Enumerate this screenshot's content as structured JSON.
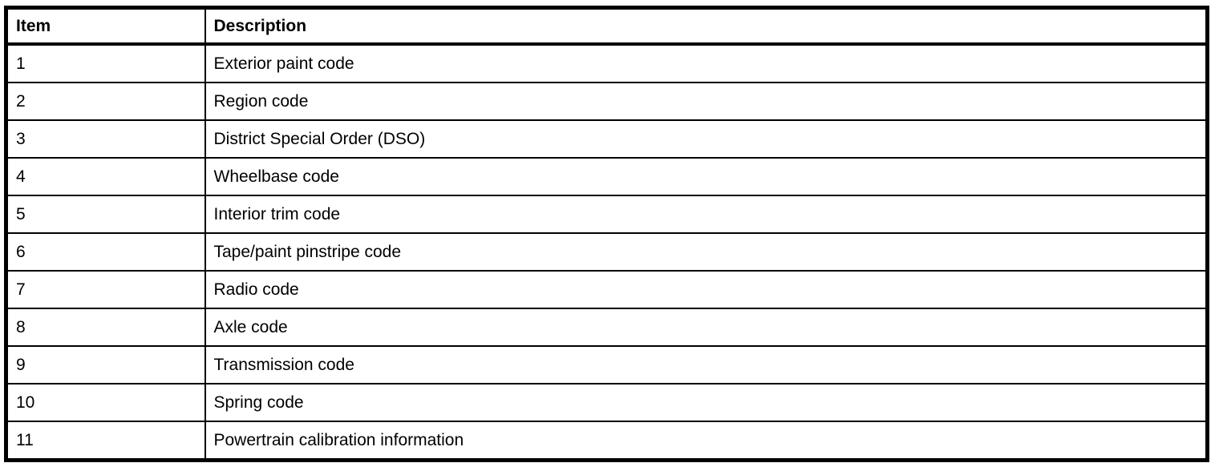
{
  "colors": {
    "border": "#000000",
    "background": "#ffffff",
    "text": "#000000"
  },
  "table": {
    "columns": [
      {
        "label": "Item"
      },
      {
        "label": "Description"
      }
    ],
    "rows": [
      {
        "item": "1",
        "description": "Exterior paint code"
      },
      {
        "item": "2",
        "description": "Region code"
      },
      {
        "item": "3",
        "description": "District Special Order (DSO)"
      },
      {
        "item": "4",
        "description": "Wheelbase code"
      },
      {
        "item": "5",
        "description": "Interior trim code"
      },
      {
        "item": "6",
        "description": "Tape/paint pinstripe code"
      },
      {
        "item": "7",
        "description": "Radio code"
      },
      {
        "item": "8",
        "description": "Axle code"
      },
      {
        "item": "9",
        "description": "Transmission code"
      },
      {
        "item": "10",
        "description": "Spring code"
      },
      {
        "item": "11",
        "description": "Powertrain calibration information"
      }
    ]
  }
}
